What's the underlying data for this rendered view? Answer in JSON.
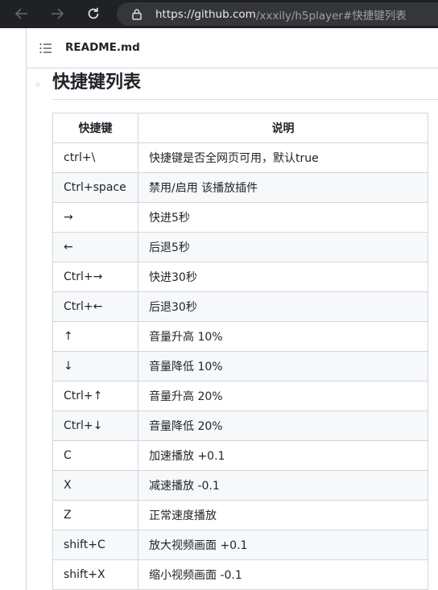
{
  "browser": {
    "url_host": "https://github.com",
    "url_path": "/xxxily/h5player#快捷键列表",
    "back_icon": "arrow-left-icon",
    "forward_icon": "arrow-right-icon",
    "reload_icon": "reload-icon",
    "lock_icon": "lock-icon"
  },
  "file_header": {
    "toc_icon": "list-icon",
    "file_name": "README.md"
  },
  "heading": "快捷键列表",
  "table": {
    "headers": [
      "快捷键",
      "说明"
    ],
    "rows": [
      {
        "key": "ctrl+\\",
        "desc": "快捷键是否全网页可用，默认true"
      },
      {
        "key": "Ctrl+space",
        "desc": "禁用/启用 该播放插件"
      },
      {
        "key": "→",
        "desc": "快进5秒"
      },
      {
        "key": "←",
        "desc": "后退5秒"
      },
      {
        "key": "Ctrl+→",
        "desc": "快进30秒"
      },
      {
        "key": "Ctrl+←",
        "desc": "后退30秒"
      },
      {
        "key": "↑",
        "desc": "音量升高 10%"
      },
      {
        "key": "↓",
        "desc": "音量降低 10%"
      },
      {
        "key": "Ctrl+↑",
        "desc": "音量升高 20%"
      },
      {
        "key": "Ctrl+↓",
        "desc": "音量降低 20%"
      },
      {
        "key": "C",
        "desc": "加速播放 +0.1"
      },
      {
        "key": "X",
        "desc": "减速播放 -0.1"
      },
      {
        "key": "Z",
        "desc": "正常速度播放"
      },
      {
        "key": "shift+C",
        "desc": "放大视频画面 +0.1"
      },
      {
        "key": "shift+X",
        "desc": "缩小视频画面 -0.1"
      }
    ]
  }
}
